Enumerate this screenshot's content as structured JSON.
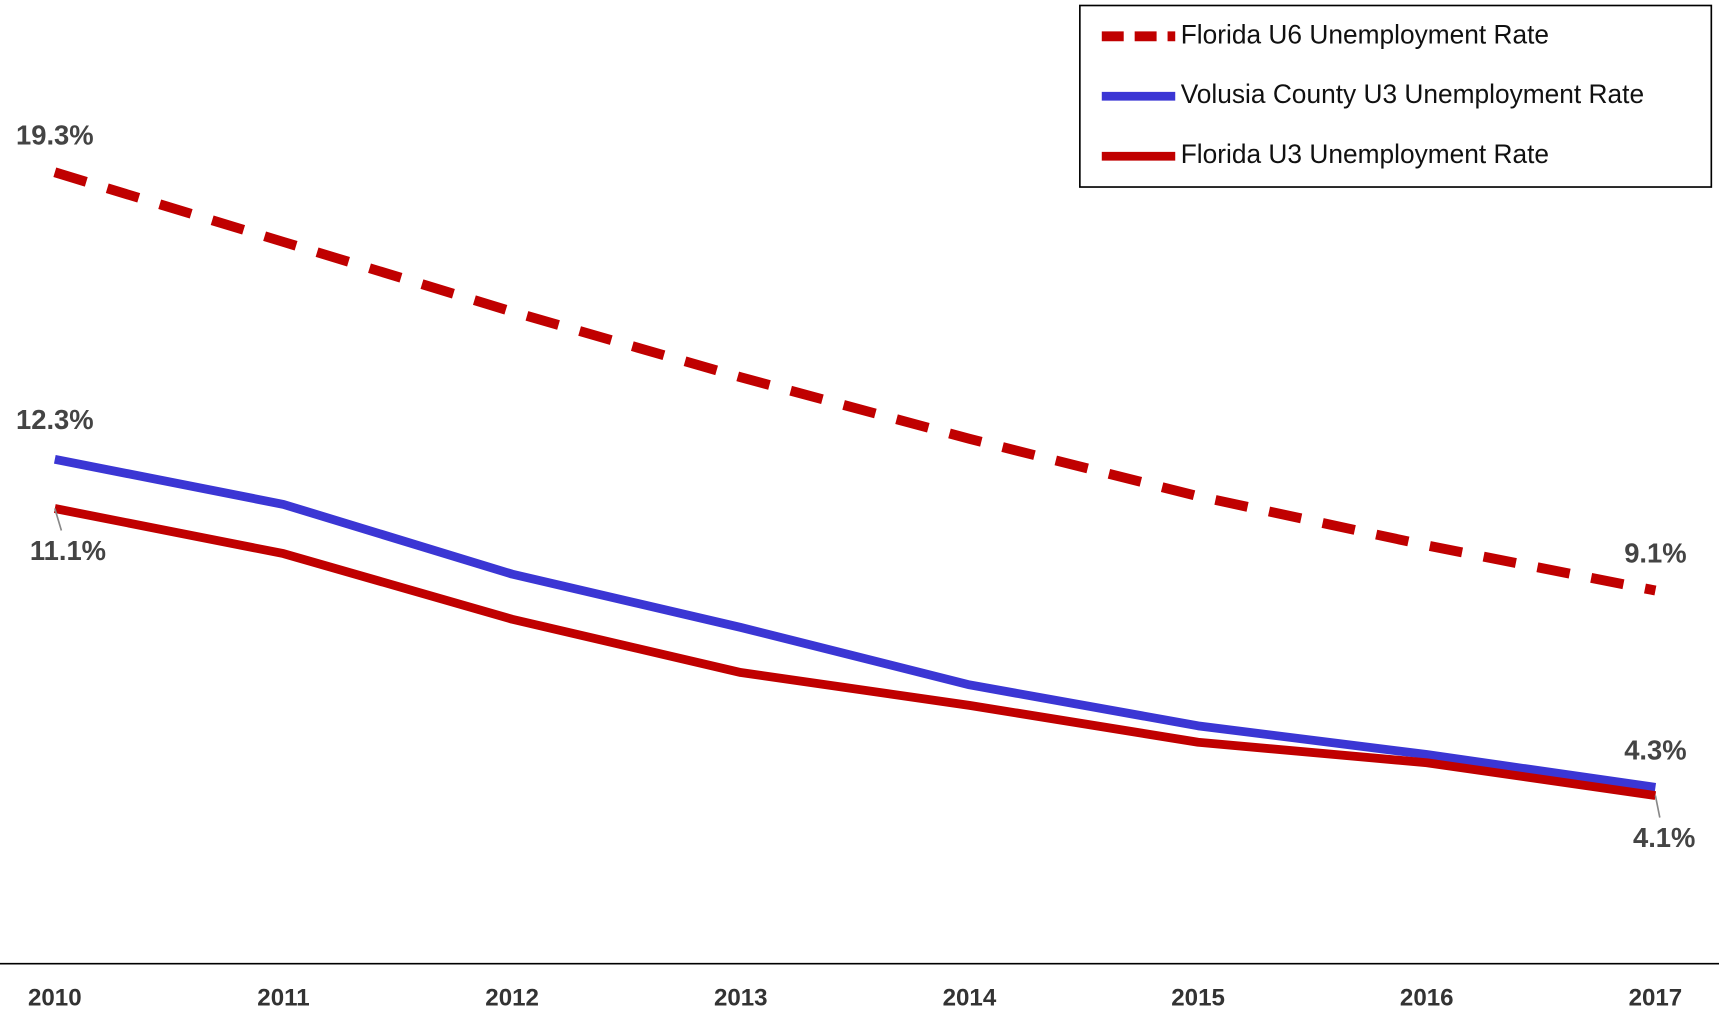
{
  "chart_data": {
    "type": "line",
    "categories": [
      "2010",
      "2011",
      "2012",
      "2013",
      "2014",
      "2015",
      "2016",
      "2017"
    ],
    "series": [
      {
        "name": "Florida U6 Unemployment Rate",
        "color": "#c00000",
        "dashed": true,
        "values": [
          19.3,
          17.6,
          15.9,
          14.3,
          12.8,
          11.4,
          10.2,
          9.1
        ],
        "value_labels": [
          "19.3%",
          null,
          null,
          null,
          null,
          null,
          null,
          "9.1%"
        ]
      },
      {
        "name": "Volusia County U3 Unemployment Rate",
        "color": "#3b36d4",
        "dashed": false,
        "values": [
          12.3,
          11.2,
          9.5,
          8.2,
          6.8,
          5.8,
          5.1,
          4.3
        ],
        "value_labels": [
          "12.3%",
          null,
          null,
          null,
          null,
          null,
          null,
          "4.3%"
        ]
      },
      {
        "name": "Florida U3 Unemployment Rate",
        "color": "#c00000",
        "dashed": false,
        "values": [
          11.1,
          10.0,
          8.4,
          7.1,
          6.3,
          5.4,
          4.9,
          4.1
        ],
        "value_labels": [
          "11.1%",
          null,
          null,
          null,
          null,
          null,
          null,
          "4.1%"
        ]
      }
    ],
    "ylim": [
      0,
      23.5
    ],
    "legend": "top-right"
  }
}
